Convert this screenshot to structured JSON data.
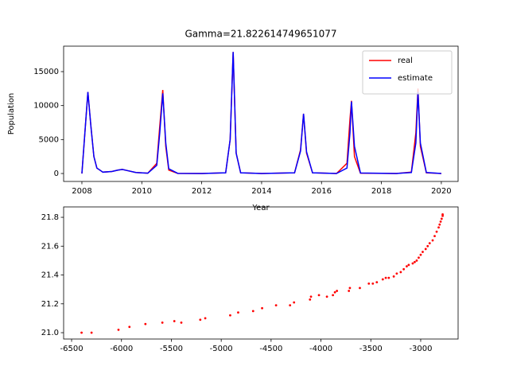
{
  "chart_data": [
    {
      "type": "line",
      "title": "Gamma=21.822614749651077",
      "x_label": "Year",
      "y_label": "Population",
      "x": [
        2008.0,
        2008.05,
        2008.1,
        2008.2,
        2008.3,
        2008.4,
        2008.5,
        2008.7,
        2009.0,
        2009.2,
        2009.35,
        2009.5,
        2009.8,
        2010.2,
        2010.5,
        2010.6,
        2010.7,
        2010.8,
        2010.9,
        2011.2,
        2012.0,
        2012.8,
        2012.95,
        2013.05,
        2013.15,
        2013.3,
        2014.0,
        2015.1,
        2015.3,
        2015.4,
        2015.5,
        2015.7,
        2016.5,
        2016.85,
        2016.95,
        2017.0,
        2017.1,
        2017.3,
        2018.5,
        2019.0,
        2019.15,
        2019.22,
        2019.3,
        2019.5,
        2020.0
      ],
      "series": [
        {
          "name": "real",
          "color": "#ff0000",
          "values": [
            0,
            3000,
            6000,
            12000,
            7000,
            2500,
            800,
            200,
            300,
            500,
            600,
            450,
            150,
            50,
            1500,
            7000,
            12300,
            4000,
            500,
            20,
            0,
            100,
            5000,
            17900,
            3000,
            100,
            0,
            100,
            3500,
            8800,
            3000,
            100,
            0,
            1500,
            8000,
            10700,
            2500,
            50,
            0,
            200,
            6000,
            12500,
            4000,
            100,
            0
          ]
        },
        {
          "name": "estimate",
          "color": "#0000ff",
          "values": [
            0,
            3000,
            6000,
            12000,
            7000,
            2500,
            800,
            200,
            300,
            500,
            600,
            450,
            150,
            50,
            1200,
            6000,
            11800,
            4500,
            700,
            20,
            0,
            100,
            5000,
            17900,
            3000,
            100,
            0,
            100,
            3300,
            8800,
            3200,
            100,
            0,
            800,
            6000,
            10600,
            4000,
            80,
            0,
            150,
            4500,
            12000,
            4500,
            150,
            0
          ]
        }
      ],
      "xlim": [
        2007.39,
        2020.56
      ],
      "ylim": [
        -1170,
        18750
      ],
      "xticks": [
        2008,
        2010,
        2012,
        2014,
        2016,
        2018,
        2020
      ],
      "yticks": [
        0,
        5000,
        10000,
        15000
      ],
      "legend": "upper right"
    },
    {
      "type": "scatter",
      "color": "#ff0000",
      "x": [
        -6400,
        -6300,
        -6030,
        -5920,
        -5760,
        -5590,
        -5470,
        -5400,
        -5210,
        -5160,
        -4910,
        -4830,
        -4680,
        -4590,
        -4450,
        -4310,
        -4270,
        -4110,
        -4100,
        -4020,
        -3940,
        -3880,
        -3860,
        -3840,
        -3720,
        -3710,
        -3610,
        -3520,
        -3480,
        -3440,
        -3380,
        -3350,
        -3320,
        -3270,
        -3240,
        -3200,
        -3170,
        -3140,
        -3120,
        -3080,
        -3060,
        -3040,
        -3020,
        -3000,
        -2980,
        -2950,
        -2930,
        -2910,
        -2880,
        -2860,
        -2840,
        -2820,
        -2810,
        -2800,
        -2790,
        -2780,
        -2780
      ],
      "values": [
        21.0,
        21.0,
        21.02,
        21.04,
        21.06,
        21.07,
        21.08,
        21.07,
        21.09,
        21.1,
        21.12,
        21.14,
        21.15,
        21.17,
        21.19,
        21.19,
        21.21,
        21.23,
        21.25,
        21.26,
        21.25,
        21.26,
        21.28,
        21.29,
        21.29,
        21.31,
        21.31,
        21.34,
        21.34,
        21.35,
        21.37,
        21.38,
        21.38,
        21.39,
        21.41,
        21.42,
        21.44,
        21.46,
        21.47,
        21.48,
        21.49,
        21.5,
        21.52,
        21.54,
        21.56,
        21.58,
        21.6,
        21.62,
        21.64,
        21.67,
        21.7,
        21.73,
        21.75,
        21.77,
        21.79,
        21.81,
        21.82
      ],
      "xlim": [
        -6580,
        -2625
      ],
      "ylim": [
        20.956,
        21.872
      ],
      "xticks": [
        -6500,
        -6000,
        -5500,
        -5000,
        -4500,
        -4000,
        -3500,
        -3000
      ],
      "yticks": [
        {
          "value": 21.0,
          "label": "21.0"
        },
        21.2,
        21.4,
        21.6,
        21.8
      ]
    }
  ]
}
